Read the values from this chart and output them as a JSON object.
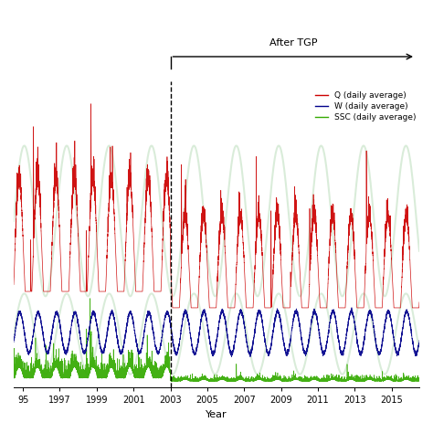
{
  "title": "",
  "xlabel": "Year",
  "x_start_year": 1994.5,
  "x_end_year": 2016.5,
  "tgp_year": 2003,
  "after_tgp_label": "After TGP",
  "legend_labels": [
    "Q (daily average)",
    "W (daily average)",
    "SSC (daily average)"
  ],
  "legend_colors": [
    "#cc0000",
    "#00008B",
    "#33aa00"
  ],
  "bg_color": "#ffffff",
  "xtick_labels": [
    "95",
    "1997",
    "1999",
    "2001",
    "2003",
    "2005",
    "2007",
    "2009",
    "2011",
    "2013",
    "2015"
  ],
  "xtick_positions": [
    1995,
    1997,
    1999,
    2001,
    2003,
    2005,
    2007,
    2009,
    2011,
    2013,
    2015
  ],
  "dashed_line_color": "#000000",
  "watermark_color": "#bbddbb"
}
